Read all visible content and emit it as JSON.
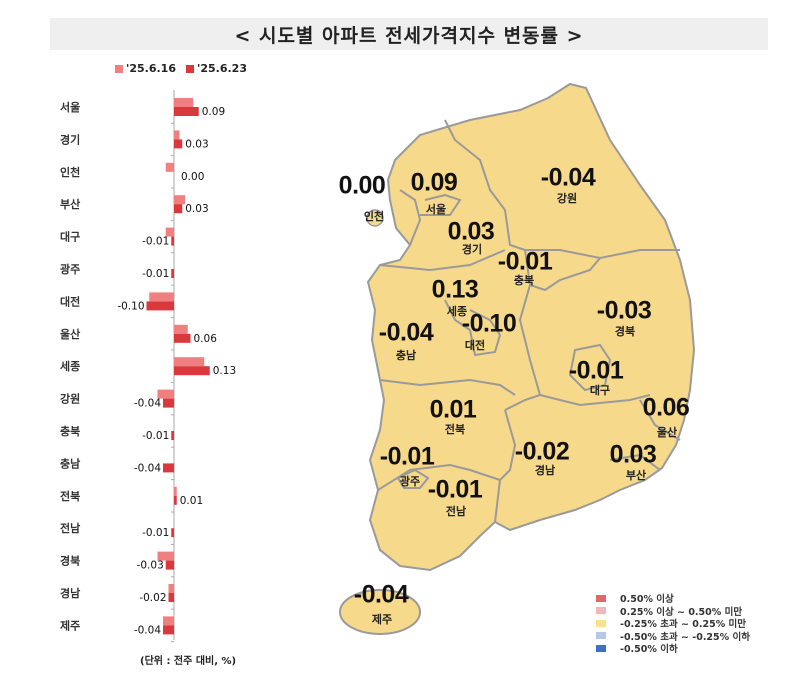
{
  "title": "< 시도별 아파트 전세가격지수 변동률 >",
  "unit_note": "(단위 : 전주 대비, %)",
  "chart_data": {
    "type": "bar",
    "orientation": "horizontal",
    "categories": [
      "서울",
      "경기",
      "인천",
      "부산",
      "대구",
      "광주",
      "대전",
      "울산",
      "세종",
      "강원",
      "충북",
      "충남",
      "전북",
      "전남",
      "경북",
      "경남",
      "제주"
    ],
    "series": [
      {
        "name": "'25.6.16",
        "color": "#f08080",
        "values": [
          0.07,
          0.02,
          -0.03,
          0.04,
          -0.03,
          0.0,
          -0.09,
          0.05,
          0.11,
          -0.06,
          0.0,
          0.0,
          0.01,
          0.0,
          -0.06,
          -0.02,
          -0.04
        ]
      },
      {
        "name": "'25.6.23",
        "color": "#d9393c",
        "values": [
          0.09,
          0.03,
          0.0,
          0.03,
          -0.01,
          -0.01,
          -0.1,
          0.06,
          0.13,
          -0.04,
          -0.01,
          -0.04,
          0.01,
          -0.01,
          -0.03,
          -0.02,
          -0.04
        ]
      }
    ],
    "data_labels": [
      "0.09",
      "0.03",
      "0.00",
      "0.03",
      "-0.01",
      "-0.01",
      "-0.10",
      "0.06",
      "0.13",
      "-0.04",
      "-0.01",
      "-0.04",
      "0.01",
      "-0.01",
      "-0.03",
      "-0.02",
      "-0.04"
    ],
    "legend_position": "top"
  },
  "map": {
    "fill_color": "#f7d98b",
    "regions": [
      {
        "name": "인천",
        "value": "0.00"
      },
      {
        "name": "서울",
        "value": "0.09"
      },
      {
        "name": "경기",
        "value": "0.03"
      },
      {
        "name": "강원",
        "value": "-0.04"
      },
      {
        "name": "충북",
        "value": "-0.01"
      },
      {
        "name": "세종",
        "value": "0.13"
      },
      {
        "name": "대전",
        "value": "-0.10"
      },
      {
        "name": "충남",
        "value": "-0.04"
      },
      {
        "name": "경북",
        "value": "-0.03"
      },
      {
        "name": "대구",
        "value": "-0.01"
      },
      {
        "name": "울산",
        "value": "0.06"
      },
      {
        "name": "전북",
        "value": "0.01"
      },
      {
        "name": "경남",
        "value": "-0.02"
      },
      {
        "name": "부산",
        "value": "0.03"
      },
      {
        "name": "광주",
        "value": "-0.01"
      },
      {
        "name": "전남",
        "value": "-0.01"
      },
      {
        "name": "제주",
        "value": "-0.04"
      }
    ],
    "legend": [
      {
        "label": "0.50% 이상",
        "color": "#e8666b"
      },
      {
        "label": "0.25% 이상 ~ 0.50% 미만",
        "color": "#f4b6b8"
      },
      {
        "label": "-0.25% 초과 ~ 0.25% 미만",
        "color": "#fbe08e"
      },
      {
        "label": "-0.50% 초과 ~ -0.25% 이하",
        "color": "#b5c8ea"
      },
      {
        "label": "-0.50% 이하",
        "color": "#3f6fc7"
      }
    ]
  }
}
